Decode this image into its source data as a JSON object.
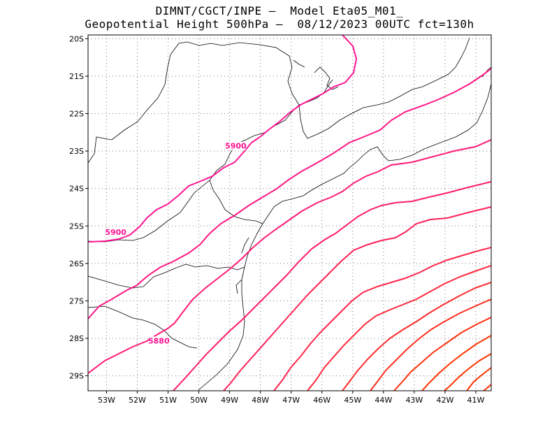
{
  "title": {
    "line1": "DIMNT/CGCT/INPE –  Model Eta05_M01_",
    "line2": "Geopotential Height 500hPa –  08/12/2023 00UTC fct=130h"
  },
  "map": {
    "lon_range": [
      -53.6,
      -40.5
    ],
    "lat_range": [
      -29.4,
      -19.9
    ],
    "lat_ticks": [
      "20S",
      "21S",
      "22S",
      "23S",
      "24S",
      "25S",
      "26S",
      "27S",
      "28S",
      "29S"
    ],
    "lon_ticks": [
      "53W",
      "52W",
      "51W",
      "50W",
      "49W",
      "48W",
      "47W",
      "46W",
      "45W",
      "44W",
      "43W",
      "42W",
      "41W"
    ],
    "grid": "dotted",
    "colors": {
      "coast": "#000000",
      "grid": "#777777",
      "contour_low": "#ff1493",
      "contour_high": "#ff3300"
    }
  },
  "contour_labels": [
    {
      "text": "5900",
      "lon": -48.8,
      "lat": -22.9
    },
    {
      "text": "5900",
      "lon": -52.7,
      "lat": -25.2
    },
    {
      "text": "5880",
      "lon": -51.3,
      "lat": -28.1
    }
  ]
}
